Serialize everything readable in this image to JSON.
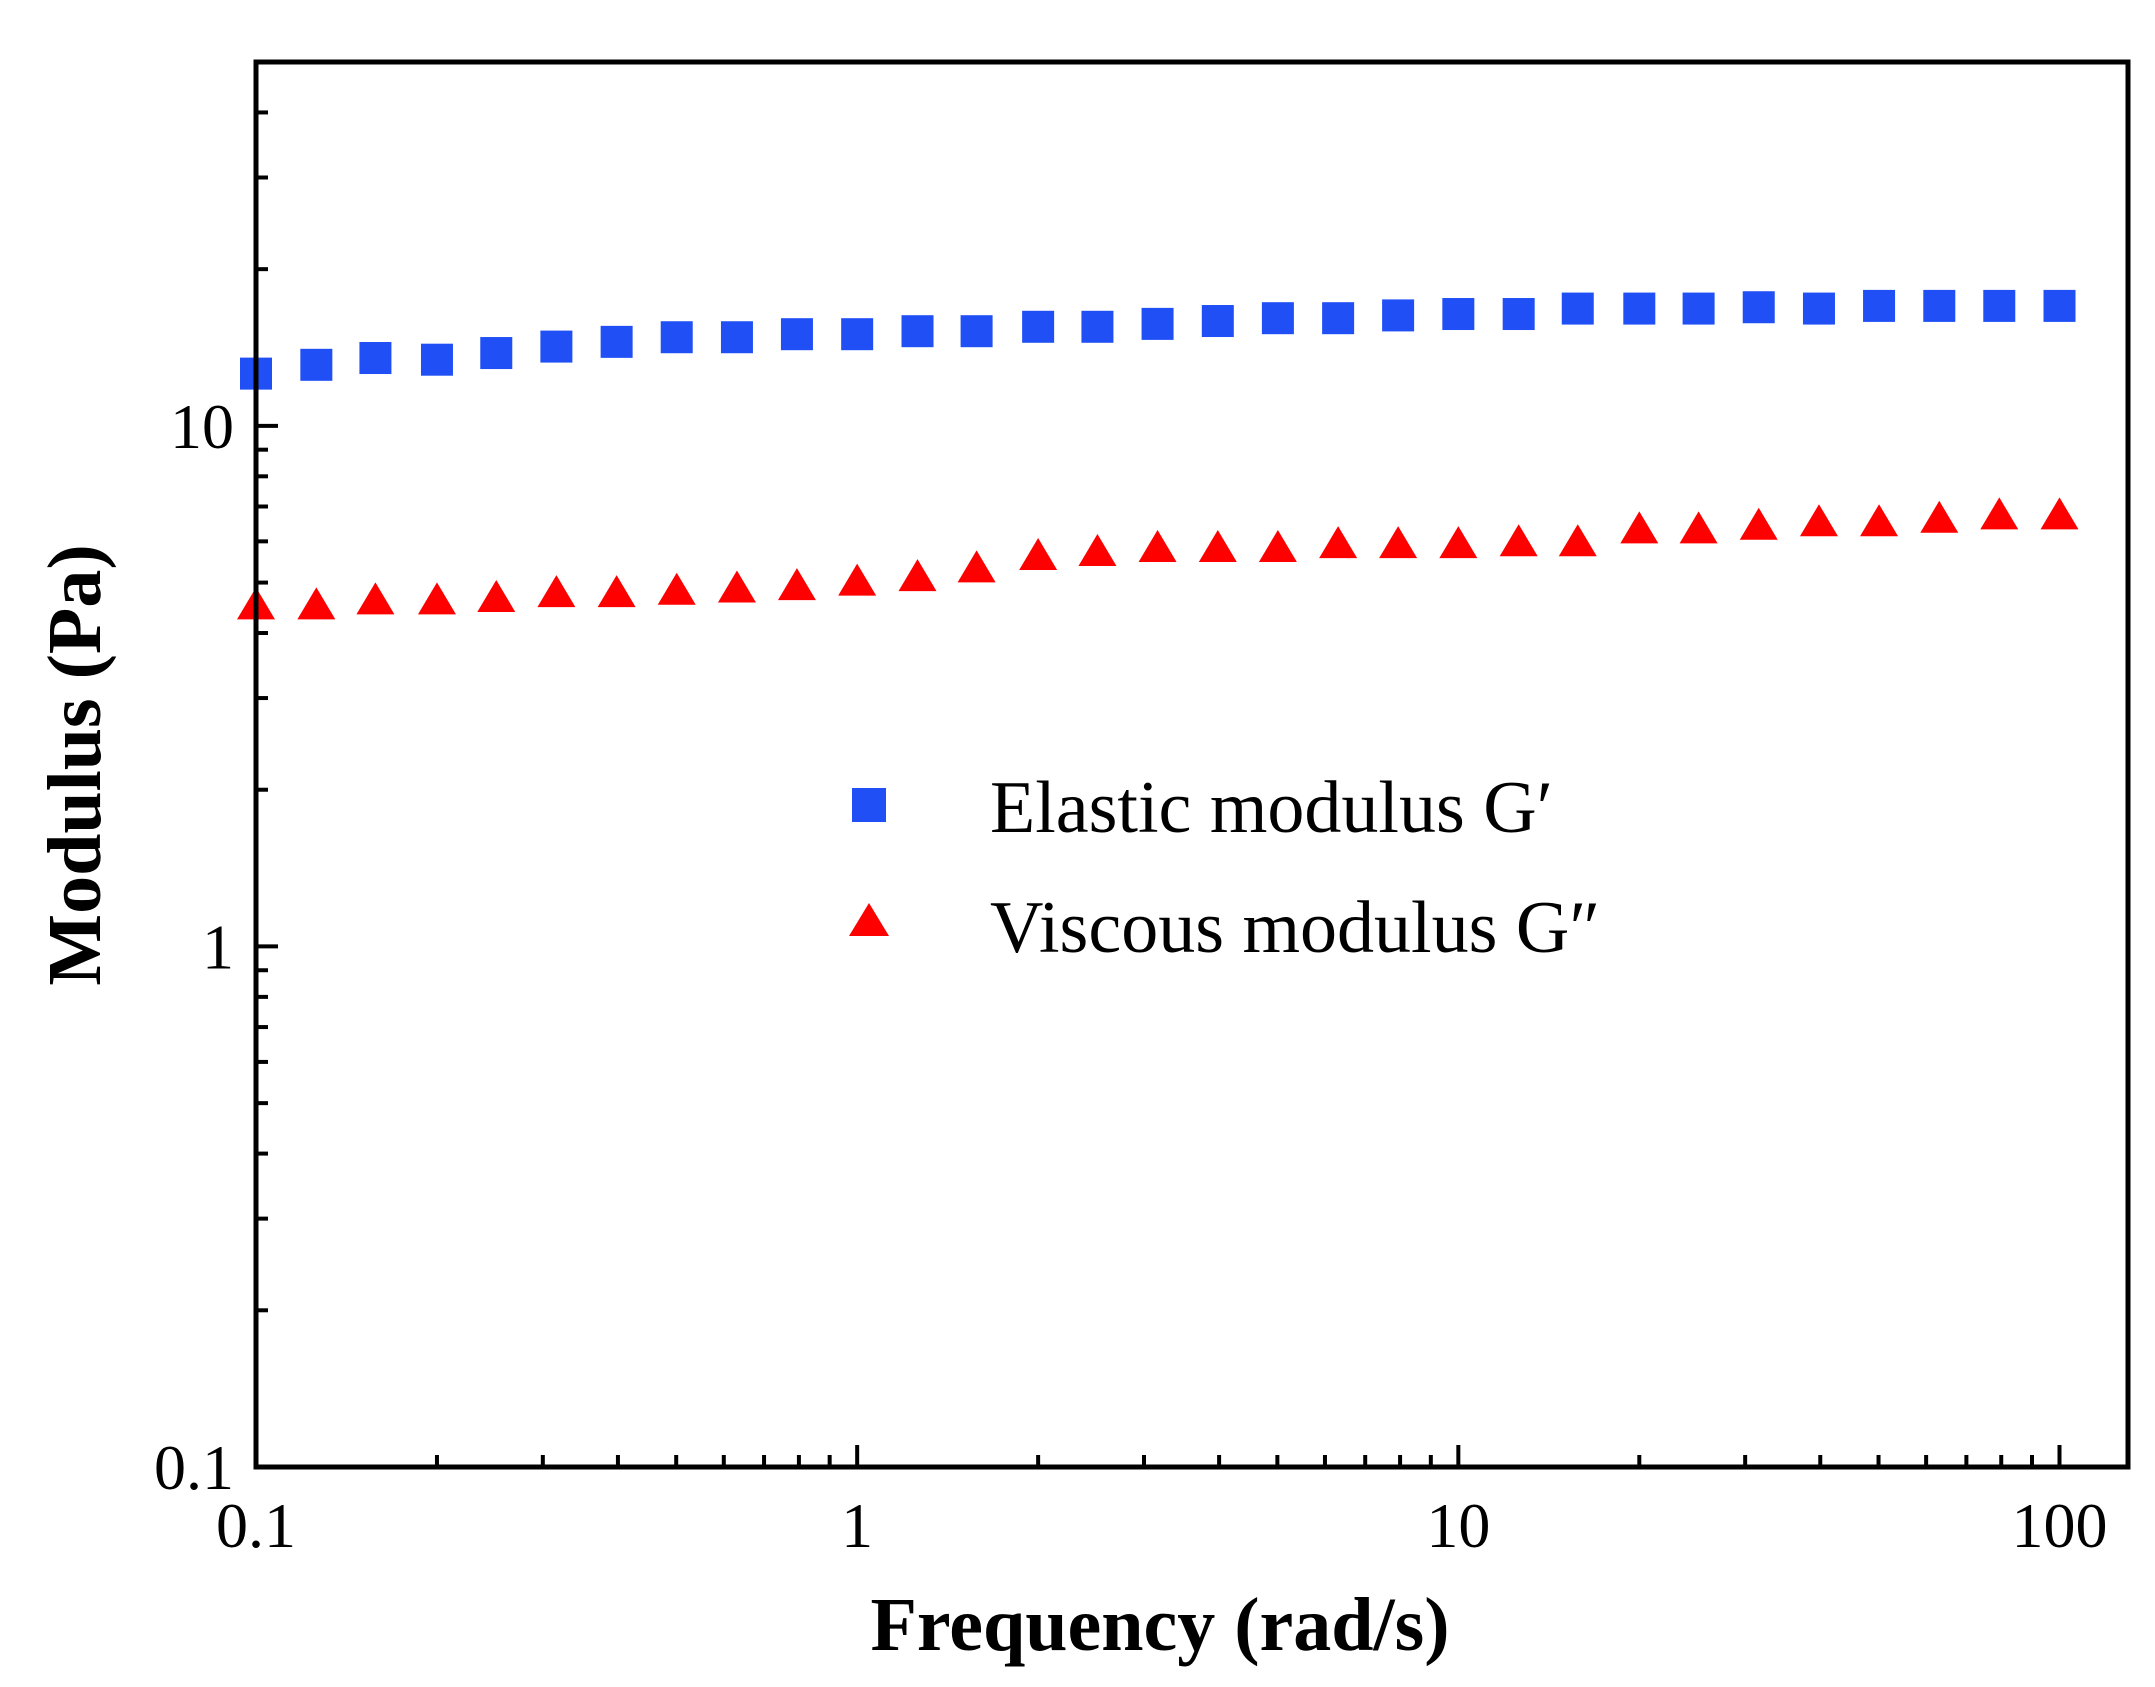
{
  "chart_data": {
    "type": "scatter",
    "xlabel": "Frequency (rad/s)",
    "ylabel": "Modulus (Pa)",
    "xscale": "log",
    "yscale": "log",
    "xlim": [
      0.1,
      130
    ],
    "ylim": [
      0.1,
      50
    ],
    "x_ticks": [
      {
        "value": 0.1,
        "label": "0.1"
      },
      {
        "value": 1,
        "label": "1"
      },
      {
        "value": 10,
        "label": "10"
      },
      {
        "value": 100,
        "label": "100"
      }
    ],
    "y_ticks": [
      {
        "value": 0.1,
        "label": "0.1"
      },
      {
        "value": 1,
        "label": "1"
      },
      {
        "value": 10,
        "label": "10"
      }
    ],
    "legend_position": "center",
    "series": [
      {
        "name": "Elastic modulus G′",
        "marker": "square",
        "color": "#1f4ff5",
        "x": [
          0.1,
          0.126,
          0.158,
          0.2,
          0.251,
          0.316,
          0.398,
          0.501,
          0.631,
          0.794,
          1.0,
          1.26,
          1.58,
          2.0,
          2.51,
          3.16,
          3.98,
          5.01,
          6.31,
          7.94,
          10.0,
          12.6,
          15.8,
          20.0,
          25.1,
          31.6,
          39.8,
          50.1,
          63.1,
          79.4,
          100.0
        ],
        "values": [
          12.6,
          13.1,
          13.5,
          13.4,
          13.8,
          14.2,
          14.5,
          14.8,
          14.8,
          15.0,
          15.0,
          15.2,
          15.2,
          15.5,
          15.5,
          15.7,
          15.9,
          16.1,
          16.1,
          16.3,
          16.4,
          16.4,
          16.8,
          16.8,
          16.8,
          16.9,
          16.8,
          17.0,
          17.0,
          17.0,
          17.0
        ]
      },
      {
        "name": "Viscous modulus G″",
        "marker": "triangle",
        "color": "#ff0000",
        "x": [
          0.1,
          0.126,
          0.158,
          0.2,
          0.251,
          0.316,
          0.398,
          0.501,
          0.631,
          0.794,
          1.0,
          1.26,
          1.58,
          2.0,
          2.51,
          3.16,
          3.98,
          5.01,
          6.31,
          7.94,
          10.0,
          12.6,
          15.8,
          20.0,
          25.1,
          31.6,
          39.8,
          50.1,
          63.1,
          79.4,
          100.0
        ],
        "values": [
          4.5,
          4.5,
          4.6,
          4.6,
          4.65,
          4.75,
          4.75,
          4.8,
          4.85,
          4.9,
          5.0,
          5.1,
          5.3,
          5.6,
          5.7,
          5.8,
          5.8,
          5.8,
          5.9,
          5.9,
          5.9,
          5.95,
          5.95,
          6.3,
          6.3,
          6.4,
          6.5,
          6.5,
          6.6,
          6.7,
          6.7
        ]
      }
    ]
  }
}
